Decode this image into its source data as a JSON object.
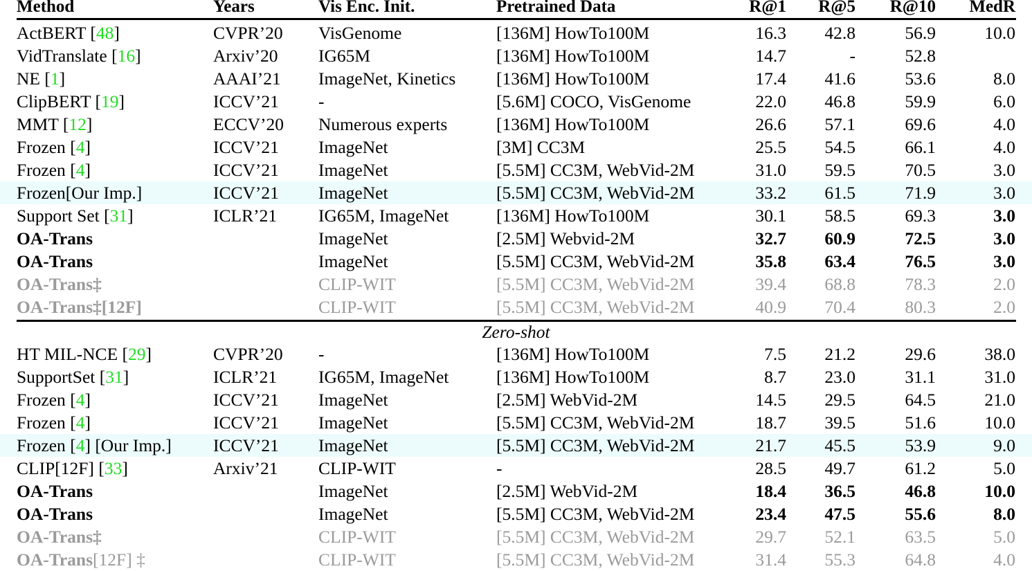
{
  "table": {
    "headers": {
      "method": "Method",
      "years": "Years",
      "vis_enc_init": "Vis Enc. Init.",
      "pretrained_data": "Pretrained Data",
      "r1": "R@1",
      "r5": "R@5",
      "r10": "R@10",
      "medr": "MedR"
    },
    "citation_color": "#22dd22",
    "highlight_color": "#ecfcfc",
    "gray_color": "#9a9a9a",
    "section_fine_tune": [
      {
        "method": "ActBERT",
        "cite": "48",
        "years": "CVPR’20",
        "vis": "VisGenome",
        "data": "[136M] HowTo100M",
        "r1": "16.3",
        "r5": "42.8",
        "r10": "56.9",
        "medr": "10.0"
      },
      {
        "method": "VidTranslate",
        "cite": "16",
        "years": "Arxiv’20",
        "vis": "IG65M",
        "data": "[136M] HowTo100M",
        "r1": "14.7",
        "r5": "-",
        "r10": "52.8",
        "medr": ""
      },
      {
        "method": "NE",
        "cite": "1",
        "years": "AAAI’21",
        "vis": "ImageNet, Kinetics",
        "data": "[136M] HowTo100M",
        "r1": "17.4",
        "r5": "41.6",
        "r10": "53.6",
        "medr": "8.0"
      },
      {
        "method": "ClipBERT",
        "cite": "19",
        "years": "ICCV’21",
        "vis": "-",
        "data": "[5.6M] COCO, VisGenome",
        "r1": "22.0",
        "r5": "46.8",
        "r10": "59.9",
        "medr": "6.0"
      },
      {
        "method": "MMT",
        "cite": "12",
        "years": "ECCV’20",
        "vis": "Numerous experts",
        "data": "[136M] HowTo100M",
        "r1": "26.6",
        "r5": "57.1",
        "r10": "69.6",
        "medr": "4.0"
      },
      {
        "method": "Frozen",
        "cite": "4",
        "years": "ICCV’21",
        "vis": "ImageNet",
        "data": "[3M] CC3M",
        "r1": "25.5",
        "r5": "54.5",
        "r10": "66.1",
        "medr": "4.0"
      },
      {
        "method": "Frozen",
        "cite": "4",
        "years": "ICCV’21",
        "vis": "ImageNet",
        "data": "[5.5M] CC3M, WebVid-2M",
        "r1": "31.0",
        "r5": "59.5",
        "r10": "70.5",
        "medr": "3.0"
      },
      {
        "method": "Frozen[Our Imp.]",
        "cite": "",
        "years": "ICCV’21",
        "vis": "ImageNet",
        "data": "[5.5M] CC3M, WebVid-2M",
        "r1": "33.2",
        "r5": "61.5",
        "r10": "71.9",
        "medr": "3.0",
        "highlight": true
      },
      {
        "method": "Support Set",
        "cite": "31",
        "years": "ICLR’21",
        "vis": "IG65M, ImageNet",
        "data": "[136M] HowTo100M",
        "r1": "30.1",
        "r5": "58.5",
        "r10": "69.3",
        "medr": "3.0",
        "medr_bold": true
      },
      {
        "method": "OA-Trans",
        "cite": "",
        "years": "",
        "vis": "ImageNet",
        "data": "[2.5M] Webvid-2M",
        "r1": "32.7",
        "r5": "60.9",
        "r10": "72.5",
        "medr": "3.0",
        "ours": true
      },
      {
        "method": "OA-Trans",
        "cite": "",
        "years": "",
        "vis": "ImageNet",
        "data": "[5.5M] CC3M, WebVid-2M",
        "r1": "35.8",
        "r5": "63.4",
        "r10": "76.5",
        "medr": "3.0",
        "ours": true
      },
      {
        "method": "OA-Trans‡",
        "cite": "",
        "years": "",
        "vis": "CLIP-WIT",
        "data": "[5.5M] CC3M, WebVid-2M",
        "r1": "39.4",
        "r5": "68.8",
        "r10": "78.3",
        "medr": "2.0",
        "gray": true
      },
      {
        "method": "OA-Trans‡[12F]",
        "cite": "",
        "years": "",
        "vis": "CLIP-WIT",
        "data": "[5.5M] CC3M, WebVid-2M",
        "r1": "40.9",
        "r5": "70.4",
        "r10": "80.3",
        "medr": "2.0",
        "gray": true
      }
    ],
    "zero_shot_label": "Zero-shot",
    "section_zero_shot": [
      {
        "method": "HT MIL-NCE",
        "cite": "29",
        "years": "CVPR’20",
        "vis": "-",
        "data": "[136M] HowTo100M",
        "r1": "7.5",
        "r5": "21.2",
        "r10": "29.6",
        "medr": "38.0"
      },
      {
        "method": "SupportSet",
        "cite": "31",
        "years": "ICLR’21",
        "vis": "IG65M, ImageNet",
        "data": "[136M] HowTo100M",
        "r1": "8.7",
        "r5": "23.0",
        "r10": "31.1",
        "medr": "31.0"
      },
      {
        "method": "Frozen",
        "cite": "4",
        "years": "ICCV’21",
        "vis": "ImageNet",
        "data": "[2.5M] WebVid-2M",
        "r1": "14.5",
        "r5": "29.5",
        "r10": "64.5",
        "medr": "21.0"
      },
      {
        "method": "Frozen",
        "cite": "4",
        "years": "ICCV’21",
        "vis": "ImageNet",
        "data": "[5.5M] CC3M, WebVid-2M",
        "r1": "18.7",
        "r5": "39.5",
        "r10": "51.6",
        "medr": "10.0"
      },
      {
        "method": "Frozen",
        "cite": "4",
        "suffix": " [Our Imp.]",
        "years": "ICCV’21",
        "vis": "ImageNet",
        "data": "[5.5M] CC3M, WebVid-2M",
        "r1": "21.7",
        "r5": "45.5",
        "r10": "53.9",
        "medr": "9.0",
        "highlight": true
      },
      {
        "method": "CLIP[12F]",
        "cite": "33",
        "years": "Arxiv’21",
        "vis": "CLIP-WIT",
        "data": "-",
        "r1": "28.5",
        "r5": "49.7",
        "r10": "61.2",
        "medr": "5.0"
      },
      {
        "method": "OA-Trans",
        "cite": "",
        "years": "",
        "vis": "ImageNet",
        "data": "[2.5M] WebVid-2M",
        "r1": "18.4",
        "r5": "36.5",
        "r10": "46.8",
        "medr": "10.0",
        "ours": true
      },
      {
        "method": "OA-Trans",
        "cite": "",
        "years": "",
        "vis": "ImageNet",
        "data": "[5.5M] CC3M, WebVid-2M",
        "r1": "23.4",
        "r5": "47.5",
        "r10": "55.6",
        "medr": "8.0",
        "ours": true
      },
      {
        "method": "OA-Trans‡",
        "cite": "",
        "years": "",
        "vis": "CLIP-WIT",
        "data": "[5.5M] CC3M, WebVid-2M",
        "r1": "29.7",
        "r5": "52.1",
        "r10": "63.5",
        "medr": "5.0",
        "gray": true
      },
      {
        "method": "OA-Trans",
        "suffix": "[12F] ‡",
        "cite": "",
        "years": "",
        "vis": "CLIP-WIT",
        "data": "[5.5M] CC3M, WebVid-2M",
        "r1": "31.4",
        "r5": "55.3",
        "r10": "64.8",
        "medr": "4.0",
        "gray": true
      }
    ]
  }
}
